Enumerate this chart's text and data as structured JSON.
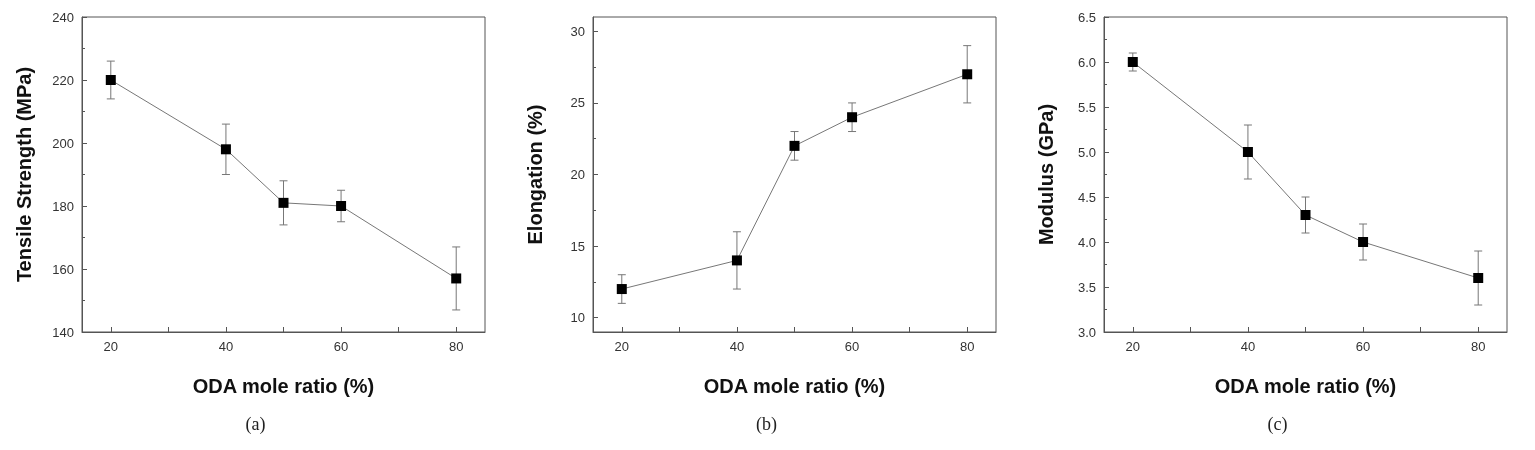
{
  "chart_data": [
    {
      "type": "line",
      "xlabel": "ODA mole ratio (%)",
      "ylabel": "Tensile Strength (MPa)",
      "annotations": [
        "(a)"
      ],
      "x": [
        20,
        40,
        50,
        60,
        80
      ],
      "series": [
        {
          "color": "#000000",
          "values": [
            220,
            198,
            181,
            180,
            157
          ],
          "errors": [
            6,
            8,
            7,
            5,
            10
          ]
        }
      ],
      "xlim": [
        15,
        85
      ],
      "xticks": [
        20,
        {
          "value": 30,
          "label": null
        },
        40,
        {
          "value": 50,
          "label": null
        },
        60,
        {
          "value": 70,
          "label": null
        },
        80
      ],
      "ylim": [
        140,
        240
      ],
      "yticks": [
        140,
        160,
        180,
        200,
        220,
        240
      ],
      "grid": false,
      "marker": "square",
      "line_style": "solid"
    },
    {
      "type": "line",
      "xlabel": "ODA mole ratio (%)",
      "ylabel": "Elongation (%)",
      "annotations": [
        "(b)"
      ],
      "x": [
        20,
        40,
        50,
        60,
        80
      ],
      "series": [
        {
          "color": "#000000",
          "values": [
            12,
            14,
            22,
            24,
            27
          ],
          "errors": [
            1,
            2,
            1,
            1,
            2
          ]
        }
      ],
      "xlim": [
        15,
        85
      ],
      "xticks": [
        20,
        {
          "value": 30,
          "label": null
        },
        40,
        {
          "value": 50,
          "label": null
        },
        60,
        {
          "value": 70,
          "label": null
        },
        80
      ],
      "ylim": [
        9,
        31
      ],
      "yticks": [
        10,
        15,
        20,
        25,
        30
      ],
      "grid": false,
      "marker": "square",
      "line_style": "solid"
    },
    {
      "type": "line",
      "xlabel": "ODA mole ratio (%)",
      "ylabel": "Modulus (GPa)",
      "annotations": [
        "(c)"
      ],
      "x": [
        20,
        40,
        50,
        60,
        80
      ],
      "series": [
        {
          "color": "#000000",
          "values": [
            6.0,
            5.0,
            4.3,
            4.0,
            3.6
          ],
          "errors": [
            0.1,
            0.3,
            0.2,
            0.2,
            0.3
          ]
        }
      ],
      "xlim": [
        15,
        85
      ],
      "xticks": [
        20,
        {
          "value": 30,
          "label": null
        },
        40,
        {
          "value": 50,
          "label": null
        },
        60,
        {
          "value": 70,
          "label": null
        },
        80
      ],
      "ylim": [
        3.0,
        6.5
      ],
      "yticks": [
        {
          "value": 3.0,
          "label": "3.0"
        },
        3.5,
        {
          "value": 4.0,
          "label": "4.0"
        },
        4.5,
        {
          "value": 5.0,
          "label": "5.0"
        },
        5.5,
        {
          "value": 6.0,
          "label": "6.0"
        },
        6.5
      ],
      "grid": false,
      "marker": "square",
      "line_style": "solid"
    }
  ]
}
